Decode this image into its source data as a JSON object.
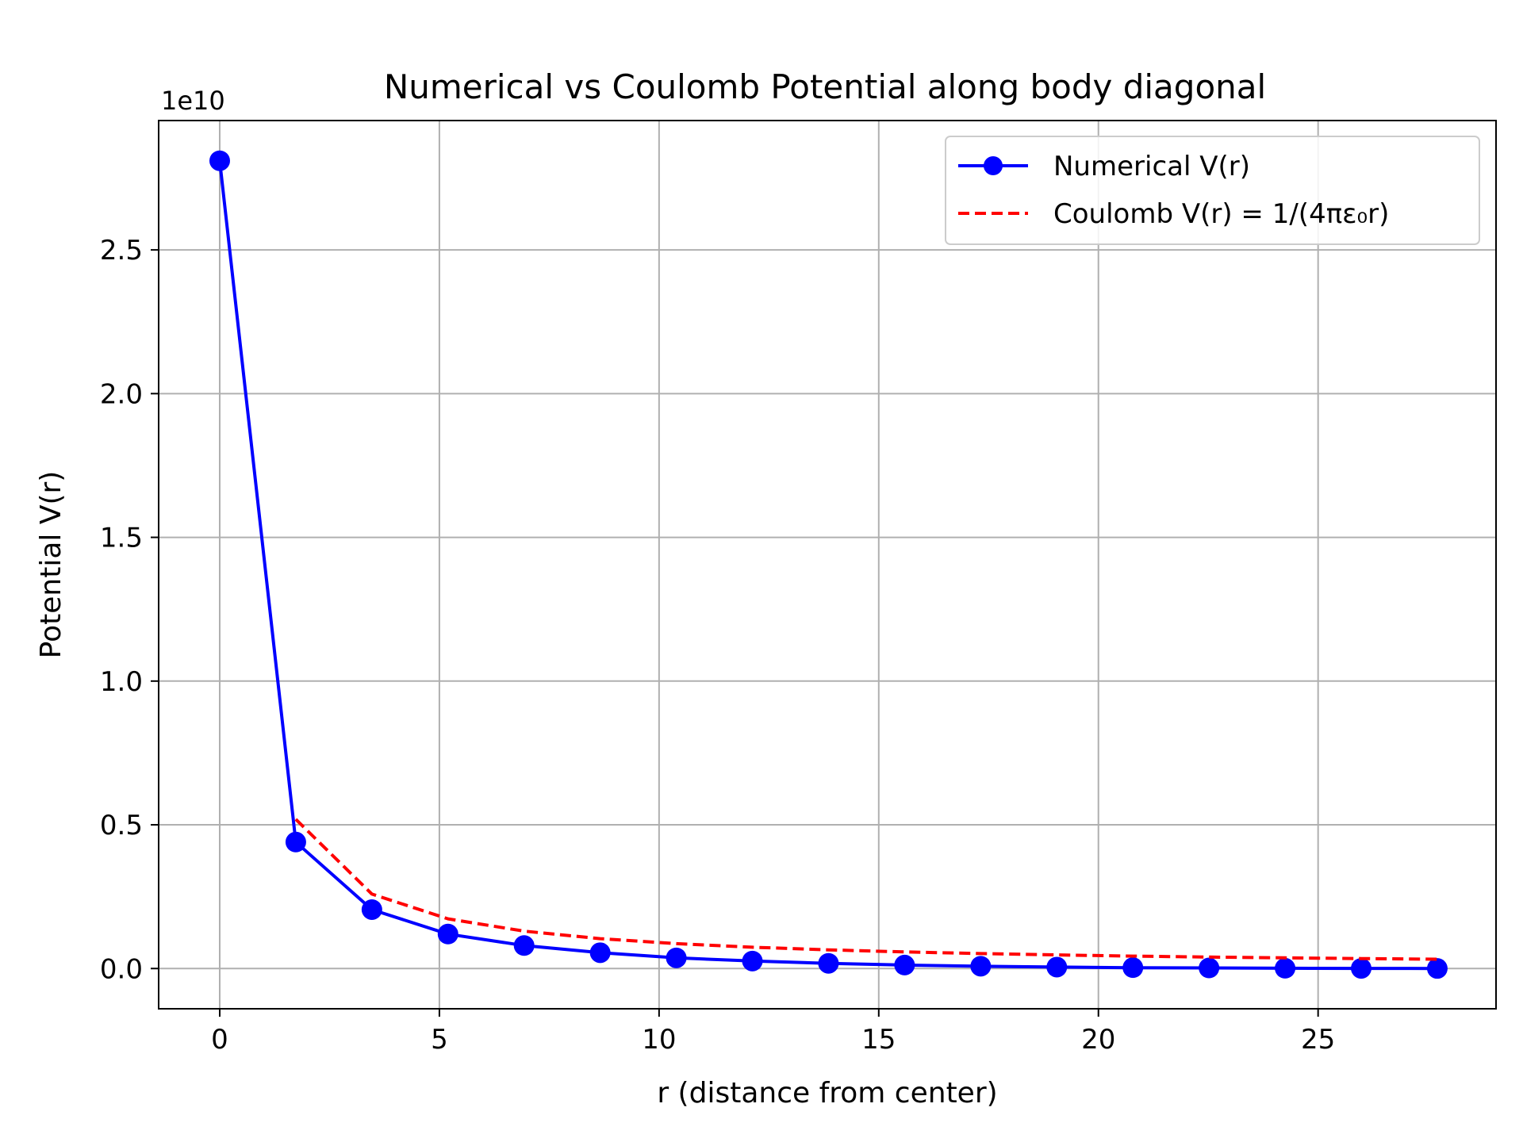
{
  "chart_data": {
    "type": "line",
    "title": "Numerical vs Coulomb Potential along body diagonal",
    "xlabel": "r (distance from center)",
    "ylabel": "Potential V(r)",
    "y_offset_label": "1e10",
    "xlim": [
      -1.39,
      29.05
    ],
    "ylim": [
      -0.14,
      2.95
    ],
    "y_scale_factor": 10000000000.0,
    "grid": true,
    "legend_position": "top-right",
    "x_ticks": [
      0,
      5,
      10,
      15,
      20,
      25
    ],
    "x_tick_labels": [
      "0",
      "5",
      "10",
      "15",
      "20",
      "25"
    ],
    "y_ticks": [
      0.0,
      0.5,
      1.0,
      1.5,
      2.0,
      2.5
    ],
    "y_tick_labels": [
      "0.0",
      "0.5",
      "1.0",
      "1.5",
      "2.0",
      "2.5"
    ],
    "series": [
      {
        "name": "Numerical V(r)",
        "color": "#0000ff",
        "style": "solid",
        "marker": "circle",
        "x": [
          0,
          1.732,
          3.464,
          5.196,
          6.928,
          8.66,
          10.392,
          12.124,
          13.856,
          15.588,
          17.321,
          19.053,
          20.785,
          22.517,
          24.249,
          25.981,
          27.713
        ],
        "y": [
          2.81,
          0.44,
          0.205,
          0.12,
          0.08,
          0.055,
          0.037,
          0.026,
          0.018,
          0.012,
          0.008,
          0.005,
          0.003,
          0.002,
          0.001,
          0.0005,
          0.0002
        ]
      },
      {
        "name": "Coulomb V(r) = 1/(4πε₀r)",
        "color": "#ff0000",
        "style": "dashed",
        "marker": "none",
        "x": [
          1.732,
          3.464,
          5.196,
          6.928,
          8.66,
          10.392,
          12.124,
          13.856,
          15.588,
          17.321,
          19.053,
          20.785,
          22.517,
          24.249,
          25.981,
          27.713
        ],
        "y": [
          0.519,
          0.259,
          0.173,
          0.13,
          0.104,
          0.0865,
          0.0741,
          0.0649,
          0.0577,
          0.0519,
          0.0472,
          0.0432,
          0.0399,
          0.0371,
          0.0346,
          0.0324
        ]
      }
    ]
  }
}
